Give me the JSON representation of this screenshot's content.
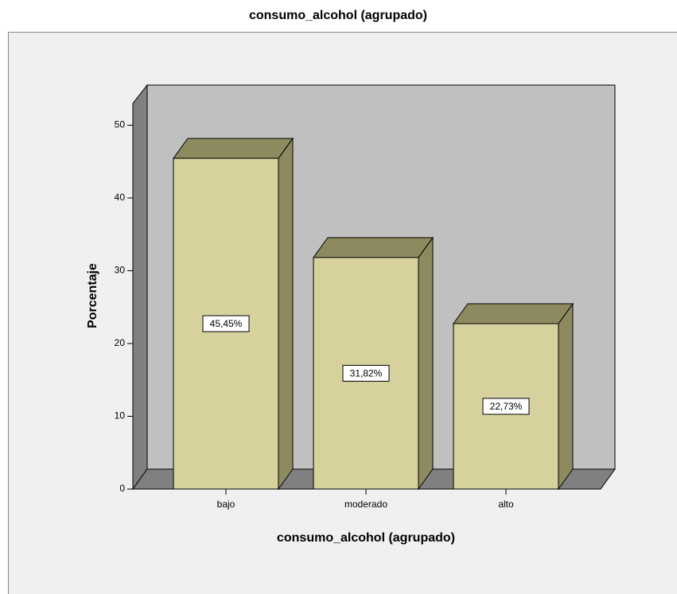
{
  "chart_data": {
    "type": "bar3d",
    "title": "consumo_alcohol (agrupado)",
    "categories": [
      "bajo",
      "moderado",
      "alto"
    ],
    "values": [
      45.45,
      31.82,
      22.73
    ],
    "value_labels": [
      "45,45%",
      "31,82%",
      "22,73%"
    ],
    "color": "#d6d19d",
    "xlabel": "consumo_alcohol (agrupado)",
    "ylabel": "Porcentaje",
    "ylim": [
      0,
      53
    ],
    "yticks": [
      0,
      10,
      20,
      30,
      40,
      50
    ]
  }
}
